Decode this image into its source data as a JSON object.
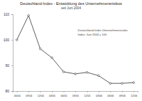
{
  "chart_data": {
    "type": "line",
    "title": "Deutschland-Index - Entwicklung des Unternehmensrisikos",
    "subtitle": "seit Juni 2004",
    "annotations": [
      "Deutschland-Index Unternehmensrisiko",
      "Index: Juni 2004 = 100"
    ],
    "categories": [
      "06/04",
      "09/04",
      "12/04",
      "03/05",
      "06/05",
      "09/05",
      "12/05",
      "03/06",
      "06/06",
      "09/06",
      "12/06"
    ],
    "values": [
      100,
      109.5,
      96.5,
      93,
      87.5,
      86.7,
      87.3,
      86,
      83,
      83,
      83.3
    ],
    "color": "#333333",
    "marker": "circle",
    "ylim": [
      80,
      110
    ],
    "yticks": [
      80,
      90,
      100,
      110
    ],
    "grid": false
  }
}
